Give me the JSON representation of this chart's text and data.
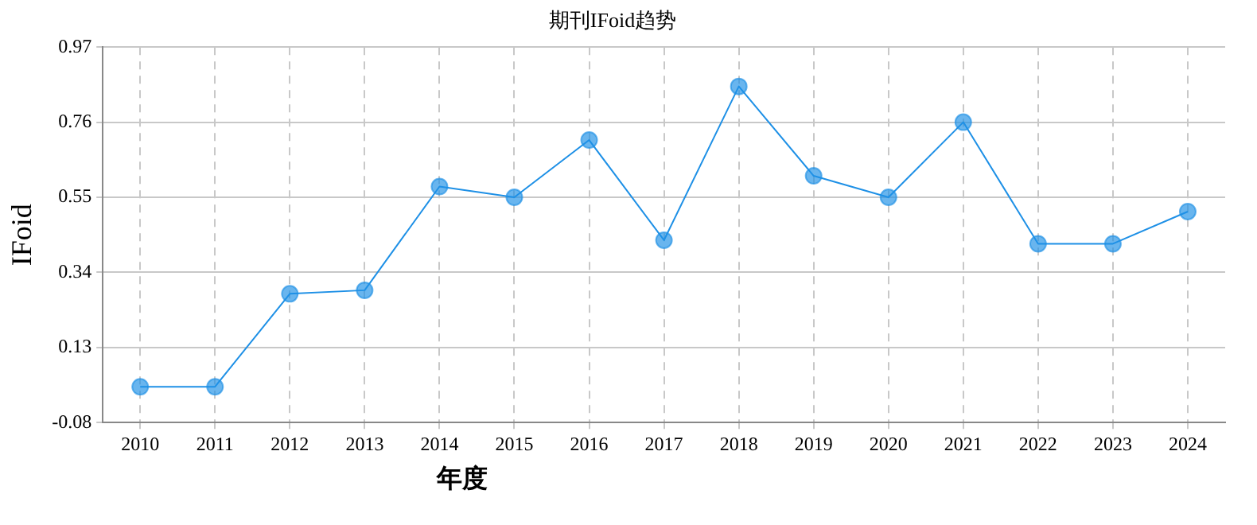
{
  "chart_data": {
    "type": "line",
    "title": "期刊IFoid趋势",
    "xlabel": "年度",
    "ylabel": "IFoid",
    "categories": [
      "2010",
      "2011",
      "2012",
      "2013",
      "2014",
      "2015",
      "2016",
      "2017",
      "2018",
      "2019",
      "2020",
      "2021",
      "2022",
      "2023",
      "2024"
    ],
    "series": [
      {
        "color": "#1e90e6",
        "values": [
          0.02,
          0.02,
          0.28,
          0.29,
          0.58,
          0.55,
          0.71,
          0.43,
          0.86,
          0.61,
          0.55,
          0.76,
          0.42,
          0.42,
          0.51
        ]
      }
    ],
    "ylim": [
      -0.08,
      0.97
    ],
    "yticks": [
      -0.08,
      0.13,
      0.34,
      0.55,
      0.76,
      0.97
    ],
    "grid": true,
    "marker": "circle",
    "line_style": "solid",
    "legend": false
  }
}
